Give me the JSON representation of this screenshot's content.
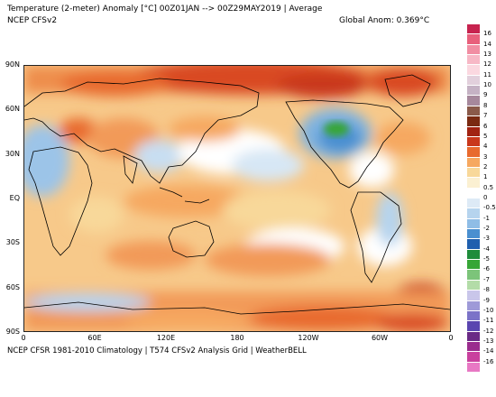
{
  "header": {
    "title": "Temperature (2-meter) Anomaly  [°C] 00Z01JAN --> 00Z29MAY2019 | Average",
    "source": "NCEP CFSv2",
    "global_anomaly": "Global Anom: 0.369°C"
  },
  "footer": "NCEP CFSR 1981-2010 Climatology | T574 CFSv2 Analysis Grid | WeatherBELL",
  "map": {
    "projection": "equirectangular, 0°–360° longitude, 90N–90S",
    "lat_labels": [
      "90N",
      "60N",
      "30N",
      "EQ",
      "30S",
      "60S",
      "90S"
    ],
    "lon_labels": [
      "0",
      "60E",
      "120E",
      "180",
      "120W",
      "60W",
      "0"
    ],
    "coastline_color": "#000000",
    "dominant_colors": {
      "warm_light": "#f8d89a",
      "warm": "#f6a860",
      "warm_strong": "#e86a2e",
      "hot": "#c9381c",
      "neutral": "#ffffff",
      "cool_light": "#c8def2",
      "cool": "#8fbde6",
      "cold_spot": "#37a637"
    }
  },
  "colorbar": {
    "ticks": [
      "16",
      "14",
      "13",
      "12",
      "11",
      "10",
      "9",
      "8",
      "7",
      "6",
      "5",
      "4",
      "3",
      "2",
      "1",
      "0.5",
      "0",
      "-0.5",
      "-1",
      "-2",
      "-3",
      "-4",
      "-5",
      "-6",
      "-7",
      "-8",
      "-9",
      "-10",
      "-11",
      "-12",
      "-13",
      "-14",
      "-16"
    ],
    "colors": [
      "#c7234f",
      "#e8607c",
      "#f18ea3",
      "#f7b8c6",
      "#fbd8e0",
      "#e2d0dc",
      "#c5b2c4",
      "#a6889c",
      "#8a5a4a",
      "#7a2a12",
      "#a12312",
      "#c9381c",
      "#e86a2e",
      "#f6a860",
      "#f8d89a",
      "#fbf0d2",
      "#ffffff",
      "#ddeaf6",
      "#b6d4ee",
      "#8fbde6",
      "#4a8fd0",
      "#1f5fae",
      "#1e8c3a",
      "#37a637",
      "#7cc47a",
      "#b3dca8",
      "#c9c6ea",
      "#9e9ad8",
      "#7b73c8",
      "#5a45b0",
      "#6a2a86",
      "#9a2c8e",
      "#c9409e",
      "#e878c4"
    ]
  }
}
